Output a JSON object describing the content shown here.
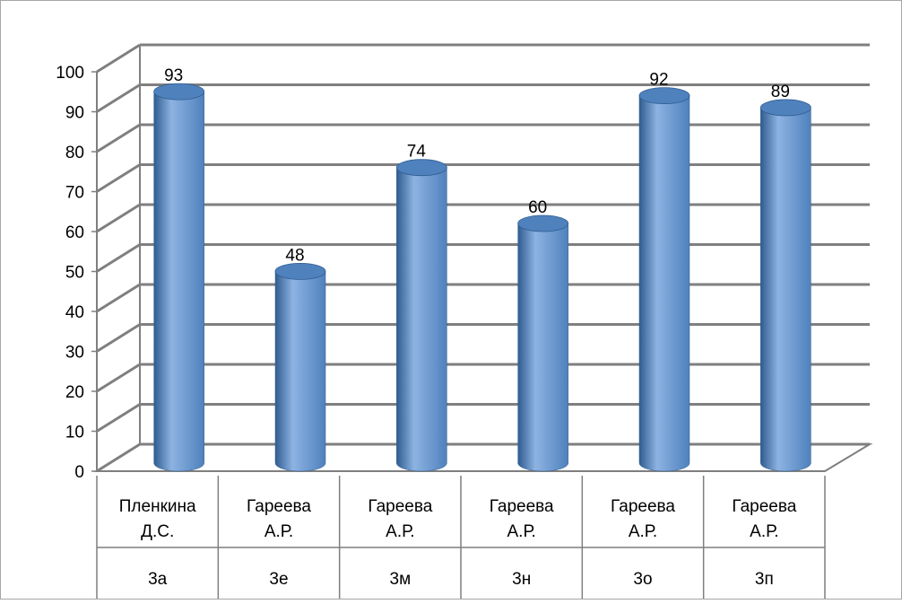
{
  "chart_data": {
    "type": "bar",
    "style": "3d-cylinder",
    "title": "",
    "xlabel": "",
    "ylabel": "",
    "ylim": [
      0,
      100
    ],
    "yticks": [
      0,
      10,
      20,
      30,
      40,
      50,
      60,
      70,
      80,
      90,
      100
    ],
    "grid": true,
    "legend": "none",
    "categories": [
      {
        "name": [
          "Пленкина",
          "Д.С."
        ],
        "class": "3а"
      },
      {
        "name": [
          "Гареева",
          "А.Р."
        ],
        "class": "3е"
      },
      {
        "name": [
          "Гареева",
          "А.Р."
        ],
        "class": "3м"
      },
      {
        "name": [
          "Гареева",
          "А.Р."
        ],
        "class": "3н"
      },
      {
        "name": [
          "Гареева",
          "А.Р."
        ],
        "class": "3о"
      },
      {
        "name": [
          "Гареева",
          "А.Р."
        ],
        "class": "3п"
      }
    ],
    "values": [
      93,
      48,
      74,
      60,
      92,
      89
    ],
    "data_labels": [
      "93",
      "48",
      "74",
      "60",
      "92",
      "89"
    ],
    "colors": {
      "bar": "#4f81bd",
      "bar_light": "#8db3e2",
      "bar_dark": "#2f5c8f",
      "grid": "#7f7f7f",
      "axis": "#7f7f7f",
      "frame": "#a6a6a6"
    }
  }
}
